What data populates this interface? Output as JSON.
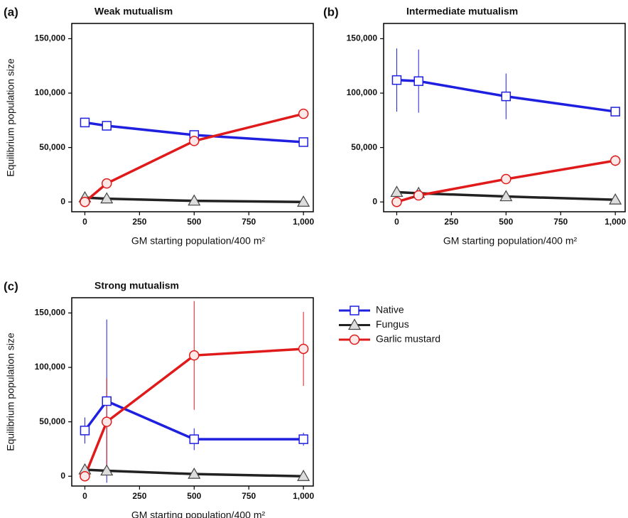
{
  "chart_data": [
    {
      "type": "line",
      "panel_label": "(a)",
      "title": "Weak mutualism",
      "xlabel": "GM starting population/400 m²",
      "ylabel": "Equilibrium population size",
      "x": [
        0,
        100,
        500,
        1000
      ],
      "xlim": [
        -60,
        1045
      ],
      "xticks": [
        0,
        250,
        500,
        750,
        {
          "value": 1000,
          "label": "1,000"
        }
      ],
      "ylim": [
        -9000,
        164000
      ],
      "yticks": [
        0,
        {
          "value": 50000,
          "label": "50,000"
        },
        {
          "value": 100000,
          "label": "100,000"
        },
        {
          "value": 150000,
          "label": "150,000"
        }
      ],
      "series": [
        {
          "color": "#1f1fe0",
          "marker": "square",
          "values": [
            73000,
            70000,
            61500,
            55000
          ]
        },
        {
          "color": "#222222",
          "marker": "triangle",
          "values": [
            4000,
            3000,
            1000,
            0
          ]
        },
        {
          "color": "#e01a1a",
          "marker": "circle",
          "values": [
            0,
            17000,
            56000,
            81000
          ]
        }
      ]
    },
    {
      "type": "line",
      "panel_label": "(b)",
      "title": "Intermediate mutualism",
      "xlabel": "GM starting population/400 m²",
      "x": [
        0,
        100,
        500,
        1000
      ],
      "xlim": [
        -60,
        1045
      ],
      "xticks": [
        0,
        250,
        500,
        750,
        {
          "value": 1000,
          "label": "1,000"
        }
      ],
      "ylim": [
        -9000,
        164000
      ],
      "yticks": [
        0,
        {
          "value": 50000,
          "label": "50,000"
        },
        {
          "value": 100000,
          "label": "100,000"
        },
        {
          "value": 150000,
          "label": "150,000"
        }
      ],
      "series": [
        {
          "color": "#1f1fe0",
          "marker": "square",
          "values": [
            112000,
            111000,
            97000,
            83000
          ],
          "errors": [
            29000,
            29000,
            21000,
            null
          ]
        },
        {
          "color": "#222222",
          "marker": "triangle",
          "values": [
            9000,
            8000,
            5000,
            2000
          ]
        },
        {
          "color": "#e01a1a",
          "marker": "circle",
          "values": [
            0,
            6000,
            21000,
            38000
          ],
          "errors": [
            null,
            null,
            null,
            5000
          ]
        }
      ]
    },
    {
      "type": "line",
      "panel_label": "(c)",
      "title": "Strong mutualism",
      "xlabel": "GM starting population/400 m²",
      "ylabel": "Equilibrium population size",
      "x": [
        0,
        100,
        500,
        1000
      ],
      "xlim": [
        -60,
        1045
      ],
      "xticks": [
        0,
        250,
        500,
        750,
        {
          "value": 1000,
          "label": "1,000"
        }
      ],
      "ylim": [
        -9000,
        164000
      ],
      "yticks": [
        0,
        {
          "value": 50000,
          "label": "50,000"
        },
        {
          "value": 100000,
          "label": "100,000"
        },
        {
          "value": 150000,
          "label": "150,000"
        }
      ],
      "legend": "right",
      "series": [
        {
          "name": "Native",
          "color": "#1f1fe0",
          "marker": "square",
          "values": [
            42000,
            69000,
            34000,
            34000
          ],
          "errors": [
            12000,
            75000,
            10000,
            6000
          ]
        },
        {
          "name": "Fungus",
          "color": "#222222",
          "marker": "triangle",
          "values": [
            6000,
            5000,
            2000,
            0
          ]
        },
        {
          "name": "Garlic mustard",
          "color": "#e01a1a",
          "marker": "circle",
          "values": [
            0,
            50000,
            111000,
            117000
          ],
          "errors": [
            null,
            40000,
            50000,
            34000
          ]
        }
      ]
    }
  ]
}
